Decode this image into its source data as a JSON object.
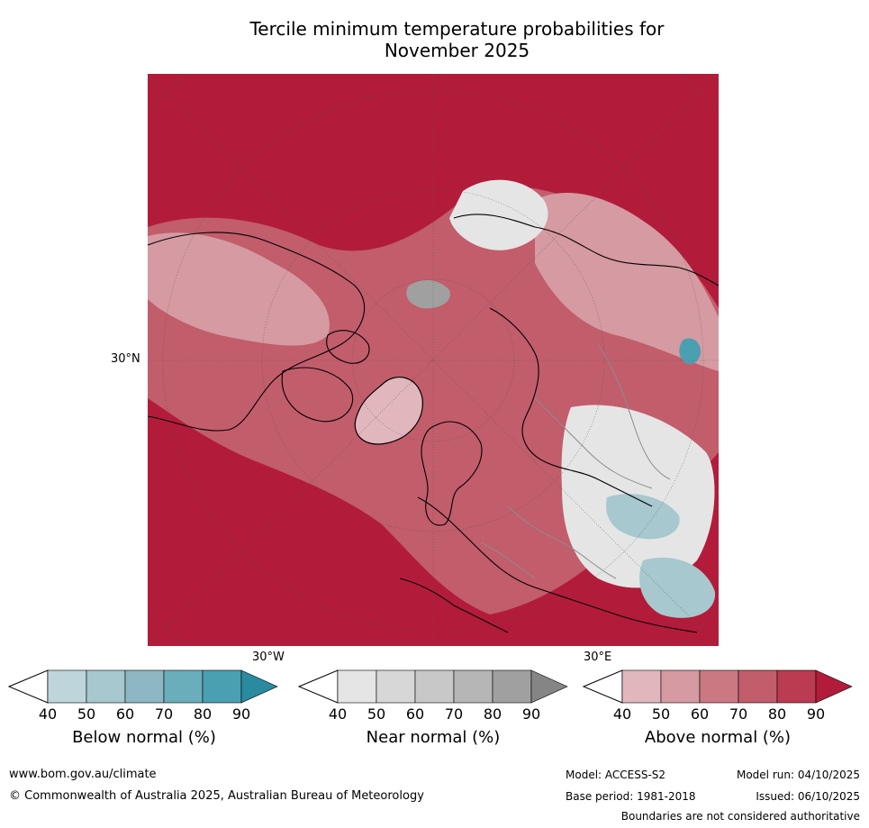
{
  "title": {
    "line1": "Tercile minimum temperature probabilities for",
    "line2": "November 2025"
  },
  "map": {
    "lat_label": "30°N",
    "lon_labels": [
      "30°W",
      "30°E"
    ]
  },
  "colorbars": [
    {
      "label": "Below normal (%)",
      "ticks": [
        "40",
        "50",
        "60",
        "70",
        "80",
        "90"
      ],
      "colors": [
        "#bed5db",
        "#a6c8ce",
        "#8db8c3",
        "#6aaebb",
        "#4aa0b1",
        "#2a8aa0"
      ]
    },
    {
      "label": "Near normal (%)",
      "ticks": [
        "40",
        "50",
        "60",
        "70",
        "80",
        "90"
      ],
      "colors": [
        "#e5e5e5",
        "#d7d7d7",
        "#c8c8c8",
        "#b6b6b6",
        "#a0a0a0",
        "#858585"
      ]
    },
    {
      "label": "Above normal (%)",
      "ticks": [
        "40",
        "50",
        "60",
        "70",
        "80",
        "90"
      ],
      "colors": [
        "#e1b7bd",
        "#d59aa2",
        "#ca7983",
        "#c25d6b",
        "#bb3b50",
        "#b21c3a"
      ]
    }
  ],
  "footer": {
    "website": "www.bom.gov.au/climate",
    "copyright": "© Commonwealth of Australia 2025, Australian Bureau of Meteorology",
    "model": "Model: ACCESS-S2",
    "model_run": "Model run: 04/10/2025",
    "base_period": "Base period: 1981-2018",
    "issued": "Issued: 06/10/2025",
    "boundaries": "Boundaries are not considered authoritative"
  },
  "colors": {
    "above_dark": "#b21c3a",
    "above_mid": "#c25d6b",
    "above_light": "#e1b7bd",
    "below": "#a6c8ce",
    "near": "#e5e5e5"
  }
}
